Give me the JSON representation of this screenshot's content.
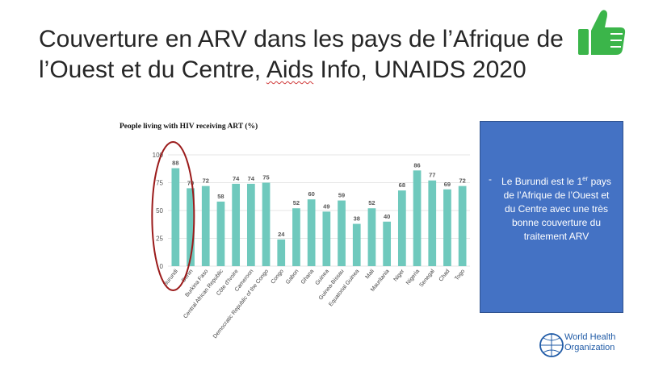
{
  "slide": {
    "title_part1": "Couverture en ARV dans les pays de l’Afrique de l’Ouest et du Centre, ",
    "title_underlined": "Aids",
    "title_part2": " Info, UNAIDS 2020"
  },
  "note": {
    "dash": "-",
    "text_before_sup": "Le Burundi est le 1",
    "sup": "er",
    "text_after_sup": " pays de l’Afrique de l’Ouest et du Centre avec une très bonne couverture du traitement ARV"
  },
  "logo": {
    "line1": "World Health",
    "line2": "Organization"
  },
  "icons": {
    "thumb": "thumbs-up-icon",
    "who": "who-emblem-icon"
  },
  "colors": {
    "bar": "#6fc9bd",
    "highlight": "#9b1b1b",
    "note_bg": "#4472c4",
    "thumb": "#3bb54a"
  },
  "chart_data": {
    "type": "bar",
    "title": "People living with HIV receiving ART (%)",
    "yticks": [
      "0",
      "25",
      "50",
      "75",
      "100"
    ],
    "ylim": [
      0,
      100
    ],
    "grid": true,
    "highlight_category": "Burundi",
    "categories": [
      "Burundi",
      "Benin",
      "Burkina Faso",
      "Central African Republic",
      "Côte d'Ivoire",
      "Cameroon",
      "Democratic Republic of the Congo",
      "Congo",
      "Gabon",
      "Ghana",
      "Guinea",
      "Guinea-Bissau",
      "Equatorial Guinea",
      "Mali",
      "Mauritania",
      "Niger",
      "Nigeria",
      "Senegal",
      "Chad",
      "Togo"
    ],
    "values": [
      88,
      70,
      72,
      58,
      74,
      74,
      75,
      24,
      52,
      60,
      49,
      59,
      38,
      52,
      40,
      68,
      86,
      77,
      69,
      72
    ]
  }
}
